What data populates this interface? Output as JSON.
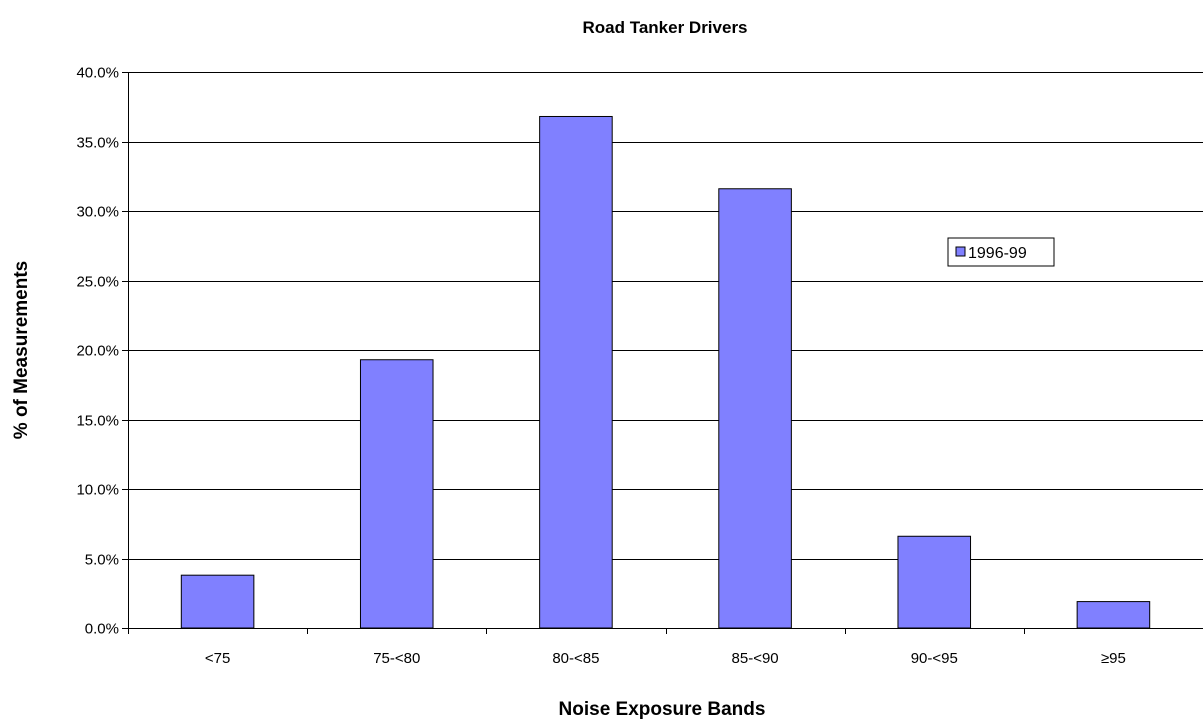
{
  "chart_data": {
    "type": "bar",
    "title": "Road Tanker Drivers",
    "xlabel": "Noise Exposure Bands",
    "ylabel": "% of Measurements",
    "categories": [
      "<75",
      "75-<80",
      "80-<85",
      "85-<90",
      "90-<95",
      "≥95"
    ],
    "series": [
      {
        "name": "1996-99",
        "values": [
          3.8,
          19.3,
          36.8,
          31.6,
          6.6,
          1.9
        ],
        "color": "#8080ff"
      }
    ],
    "yticks": [
      "0.0%",
      "5.0%",
      "10.0%",
      "15.0%",
      "20.0%",
      "25.0%",
      "30.0%",
      "35.0%",
      "40.0%"
    ],
    "ylim": [
      0,
      40
    ],
    "grid": true,
    "legend_position": "right"
  }
}
